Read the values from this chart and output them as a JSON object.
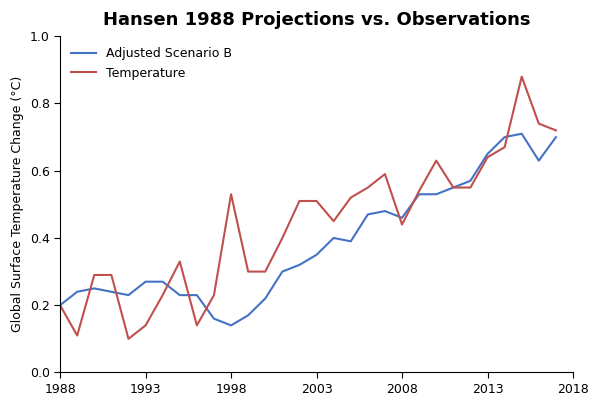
{
  "title": "Hansen 1988 Projections vs. Observations",
  "ylabel": "Global Surface Temperature Change (°C)",
  "ylim": [
    0.0,
    1.0
  ],
  "xlim": [
    1988,
    2018
  ],
  "xticks": [
    1988,
    1993,
    1998,
    2003,
    2008,
    2013,
    2018
  ],
  "yticks": [
    0.0,
    0.2,
    0.4,
    0.6,
    0.8,
    1.0
  ],
  "scenario_b": {
    "label": "Adjusted Scenario B",
    "color": "#4472C4",
    "years": [
      1988,
      1989,
      1990,
      1991,
      1992,
      1993,
      1994,
      1995,
      1996,
      1997,
      1998,
      1999,
      2000,
      2001,
      2002,
      2003,
      2004,
      2005,
      2006,
      2007,
      2008,
      2009,
      2010,
      2011,
      2012,
      2013,
      2014,
      2015,
      2016,
      2017
    ],
    "values": [
      0.2,
      0.24,
      0.25,
      0.24,
      0.23,
      0.27,
      0.27,
      0.23,
      0.23,
      0.16,
      0.14,
      0.17,
      0.22,
      0.3,
      0.32,
      0.35,
      0.4,
      0.39,
      0.47,
      0.48,
      0.46,
      0.53,
      0.53,
      0.55,
      0.57,
      0.65,
      0.7,
      0.71,
      0.63,
      0.7
    ]
  },
  "temperature": {
    "label": "Temperature",
    "color": "#C0504D",
    "years": [
      1988,
      1989,
      1990,
      1991,
      1992,
      1993,
      1994,
      1995,
      1996,
      1997,
      1998,
      1999,
      2000,
      2001,
      2002,
      2003,
      2004,
      2005,
      2006,
      2007,
      2008,
      2009,
      2010,
      2011,
      2012,
      2013,
      2014,
      2015,
      2016,
      2017
    ],
    "values": [
      0.2,
      0.11,
      0.29,
      0.29,
      0.1,
      0.14,
      0.23,
      0.33,
      0.14,
      0.23,
      0.53,
      0.3,
      0.3,
      0.4,
      0.51,
      0.51,
      0.45,
      0.52,
      0.55,
      0.59,
      0.44,
      0.54,
      0.63,
      0.55,
      0.55,
      0.64,
      0.67,
      0.88,
      0.74,
      0.72
    ]
  },
  "legend_loc": "upper left",
  "legend_frameon": false,
  "background_color": "#FFFFFF",
  "line_width": 1.5
}
